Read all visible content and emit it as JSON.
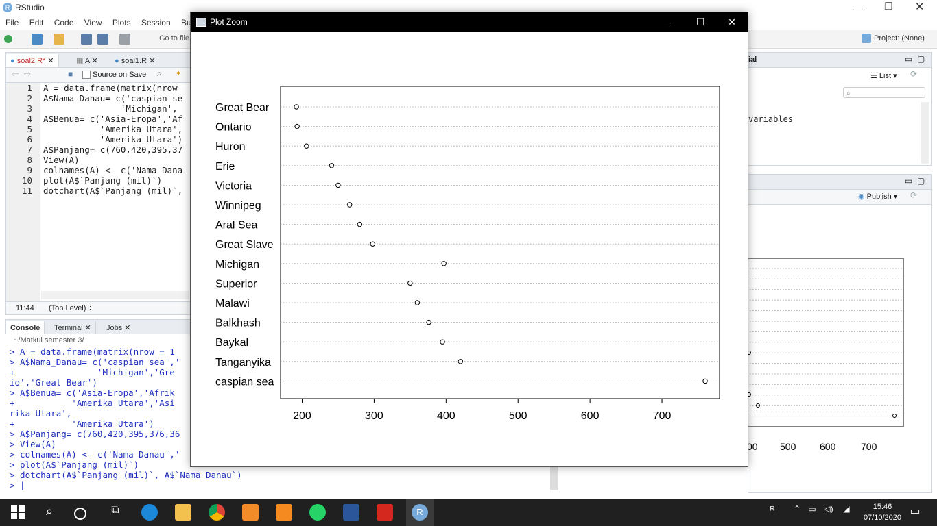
{
  "app": {
    "title": "RStudio",
    "menu": [
      "File",
      "Edit",
      "Code",
      "View",
      "Plots",
      "Session",
      "Bu"
    ],
    "goto_placeholder": "Go to file",
    "project": "Project: (None)"
  },
  "editor": {
    "tabs": [
      "soal2.R*",
      "A",
      "soal1.R"
    ],
    "source_on_save": "Source on Save",
    "lines": [
      {
        "n": "1",
        "code": "A = data.frame(matrix(nrow"
      },
      {
        "n": "2",
        "code": "A$Nama_Danau= c('caspian se"
      },
      {
        "n": "3",
        "code": "               'Michigan',"
      },
      {
        "n": "4",
        "code": "A$Benua= c('Asia-Eropa','Af"
      },
      {
        "n": "5",
        "code": "           'Amerika Utara',"
      },
      {
        "n": "6",
        "code": "           'Amerika Utara')"
      },
      {
        "n": "7",
        "code": "A$Panjang= c(760,420,395,37"
      },
      {
        "n": "8",
        "code": "View(A)"
      },
      {
        "n": "9",
        "code": "colnames(A) <- c('Nama Dana"
      },
      {
        "n": "10",
        "code": "plot(A$`Panjang (mil)`)"
      },
      {
        "n": "11",
        "code": "dotchart(A$`Panjang (mil)`,"
      }
    ],
    "status_pos": "11:44",
    "status_scope": "(Top Level) ÷"
  },
  "console": {
    "tabs": [
      "Console",
      "Terminal",
      "Jobs"
    ],
    "path": "~/Matkul semester 3/",
    "lines": [
      "> A = data.frame(matrix(nrow = 1",
      "> A$Nama_Danau= c('caspian sea','",
      "+                'Michigan','Gre",
      "io','Great Bear')",
      "> A$Benua= c('Asia-Eropa','Afrik",
      "+           'Amerika Utara','Asi",
      "rika Utara',",
      "+           'Amerika Utara')",
      "> A$Panjang= c(760,420,395,376,36",
      "> View(A)",
      "> colnames(A) <- c('Nama Danau','",
      "> plot(A$`Panjang (mil)`)",
      "> dotchart(A$`Panjang (mil)`, A$`Nama Danau`)",
      "> |"
    ]
  },
  "right_panel": {
    "top_tab": "ial",
    "list_label": "List",
    "env_text": "variables",
    "publish_label": "Publish",
    "bg_axis_ticks": [
      "00",
      "500",
      "600",
      "700"
    ]
  },
  "zoom_window": {
    "title": "Plot Zoom",
    "minimize": "—",
    "maximize": "☐",
    "close": "✕"
  },
  "chart_data": {
    "type": "scatter",
    "subtype": "dotchart",
    "categories": [
      "Great Bear",
      "Ontario",
      "Huron",
      "Erie",
      "Victoria",
      "Winnipeg",
      "Aral Sea",
      "Great Slave",
      "Michigan",
      "Superior",
      "Malawi",
      "Balkhash",
      "Baykal",
      "Tanganyika",
      "caspian sea"
    ],
    "values": [
      192,
      193,
      206,
      241,
      250,
      266,
      280,
      298,
      397,
      350,
      360,
      376,
      395,
      420,
      760
    ],
    "x_ticks": [
      "200",
      "300",
      "400",
      "500",
      "600",
      "700"
    ],
    "xlim": [
      170,
      780
    ],
    "grid": "dotted horizontal"
  },
  "taskbar": {
    "time": "15:46",
    "date": "07/10/2020"
  }
}
